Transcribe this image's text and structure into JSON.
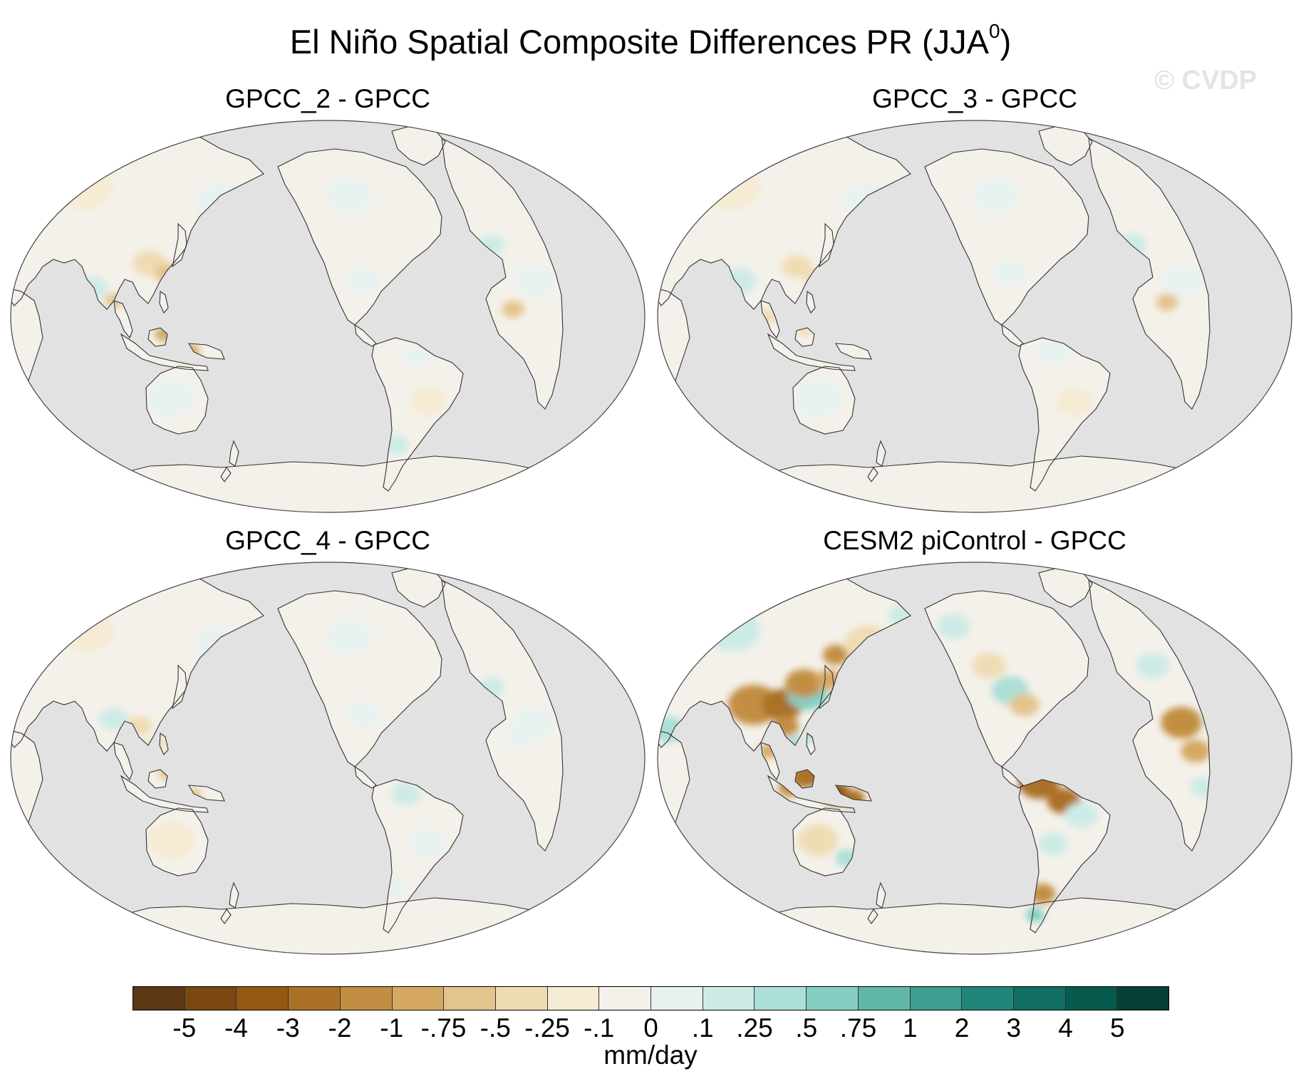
{
  "figure": {
    "title_main": "El Niño Spatial Composite Differences PR (JJA",
    "title_sup": "0",
    "title_close": ")",
    "watermark": "© CVDP"
  },
  "panels": [
    {
      "title": "GPCC_2 - GPCC",
      "field": "weak-1"
    },
    {
      "title": "GPCC_3 - GPCC",
      "field": "weak-2"
    },
    {
      "title": "GPCC_4 - GPCC",
      "field": "weak-3"
    },
    {
      "title": "CESM2 piControl - GPCC",
      "field": "strong"
    }
  ],
  "colorbar": {
    "units": "mm/day",
    "tick_labels": [
      "-5",
      "-4",
      "-3",
      "-2",
      "-1",
      "-.75",
      "-.5",
      "-.25",
      "-.1",
      "0",
      ".1",
      ".25",
      ".5",
      ".75",
      "1",
      "2",
      "3",
      "4",
      "5"
    ],
    "colors": [
      "#5c3714",
      "#7a4710",
      "#945811",
      "#ab7127",
      "#c28e43",
      "#d5a964",
      "#e4c48d",
      "#f0dcb3",
      "#f6ebd3",
      "#f4f1ea",
      "#e7f2f0",
      "#cdebe6",
      "#acdfd7",
      "#85cfc2",
      "#5fb6a9",
      "#3e9e91",
      "#22857a",
      "#0f6d62",
      "#065a4e",
      "#063f35"
    ]
  },
  "map_style": {
    "ocean_color": "#e2e2e2",
    "coast_color": "#333333"
  }
}
